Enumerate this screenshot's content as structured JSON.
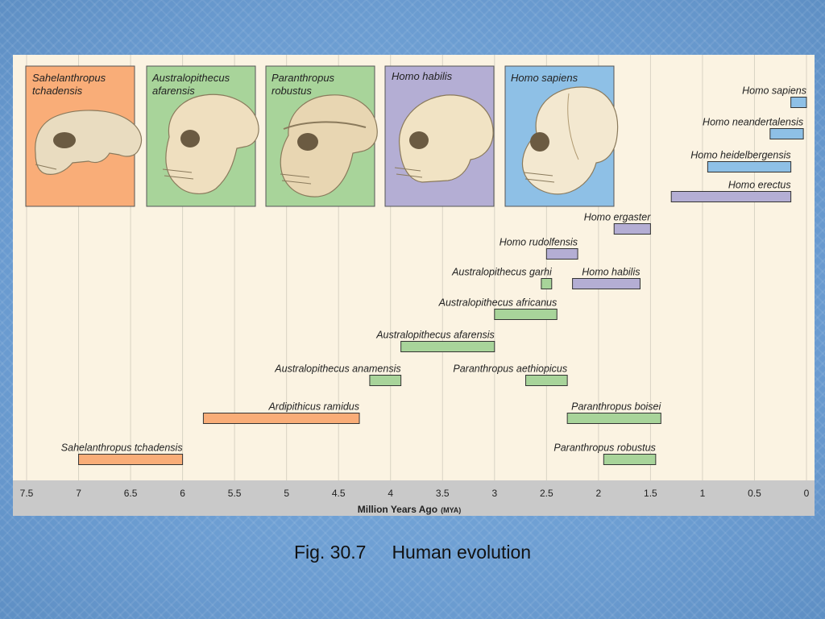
{
  "caption": {
    "figure": "Fig. 30.7",
    "title": "Human evolution"
  },
  "colors": {
    "background": "#fbf3e2",
    "axis_band": "#c9c9c9",
    "orange": "#f9ad78",
    "green": "#a8d49a",
    "purple": "#b4aed4",
    "blue": "#8ec0e6"
  },
  "skull_panels": [
    {
      "title_lines": [
        "Sahelanthropus",
        "tchadensis"
      ],
      "color": "#f9ad78"
    },
    {
      "title_lines": [
        "Australopithecus",
        "afarensis"
      ],
      "color": "#a8d49a"
    },
    {
      "title_lines": [
        "Paranthropus",
        "robustus"
      ],
      "color": "#a8d49a"
    },
    {
      "title_lines": [
        "Homo habilis"
      ],
      "color": "#b4aed4"
    },
    {
      "title_lines": [
        "Homo sapiens"
      ],
      "color": "#8ec0e6"
    }
  ],
  "chart_data": {
    "type": "bar",
    "orientation": "horizontal-range",
    "xlabel": "Million Years Ago",
    "xlabel_unit": "(MYA)",
    "xlim": [
      7.5,
      0
    ],
    "xticks": [
      7.5,
      7,
      6.5,
      6,
      5.5,
      5,
      4.5,
      4,
      3.5,
      3,
      2.5,
      2,
      1.5,
      1,
      0.5,
      0
    ],
    "xtick_labels": [
      "7.5",
      "7",
      "6.5",
      "6",
      "5.5",
      "5",
      "4.5",
      "4",
      "3.5",
      "3",
      "2.5",
      "2",
      "1.5",
      "1",
      "0.5",
      "0"
    ],
    "grid": "vertical",
    "species": [
      {
        "name": "Homo sapiens",
        "start": 0.15,
        "end": 0.0,
        "row": 0,
        "color": "#8ec0e6"
      },
      {
        "name": "Homo neandertalensis",
        "start": 0.35,
        "end": 0.03,
        "row": 1,
        "color": "#8ec0e6"
      },
      {
        "name": "Homo heidelbergensis",
        "start": 0.95,
        "end": 0.15,
        "row": 2,
        "color": "#8ec0e6"
      },
      {
        "name": "Homo erectus",
        "start": 1.3,
        "end": 0.15,
        "row": 3,
        "color": "#b4aed4"
      },
      {
        "name": "Homo ergaster",
        "start": 1.85,
        "end": 1.5,
        "row": 4,
        "color": "#b4aed4"
      },
      {
        "name": "Homo rudolfensis",
        "start": 2.5,
        "end": 2.2,
        "row": 5,
        "color": "#b4aed4"
      },
      {
        "name": "Australopithecus garhi",
        "start": 2.55,
        "end": 2.45,
        "row": 6,
        "color": "#a8d49a"
      },
      {
        "name": "Homo habilis",
        "start": 2.25,
        "end": 1.6,
        "row": 6,
        "color": "#b4aed4"
      },
      {
        "name": "Australopithecus africanus",
        "start": 3.0,
        "end": 2.4,
        "row": 7,
        "color": "#a8d49a"
      },
      {
        "name": "Australopithecus afarensis",
        "start": 3.9,
        "end": 3.0,
        "row": 8,
        "color": "#a8d49a"
      },
      {
        "name": "Australopithecus anamensis",
        "start": 4.2,
        "end": 3.9,
        "row": 9,
        "color": "#a8d49a"
      },
      {
        "name": "Paranthropus aethiopicus",
        "start": 2.7,
        "end": 2.3,
        "row": 9,
        "color": "#a8d49a"
      },
      {
        "name": "Ardipithicus ramidus",
        "start": 5.8,
        "end": 4.3,
        "row": 10,
        "color": "#f9ad78"
      },
      {
        "name": "Paranthropus boisei",
        "start": 2.3,
        "end": 1.4,
        "row": 10,
        "color": "#a8d49a"
      },
      {
        "name": "Sahelanthropus tchadensis",
        "start": 7.0,
        "end": 6.0,
        "row": 11,
        "color": "#f9ad78"
      },
      {
        "name": "Paranthropus robustus",
        "start": 1.95,
        "end": 1.45,
        "row": 11,
        "color": "#a8d49a"
      }
    ]
  }
}
